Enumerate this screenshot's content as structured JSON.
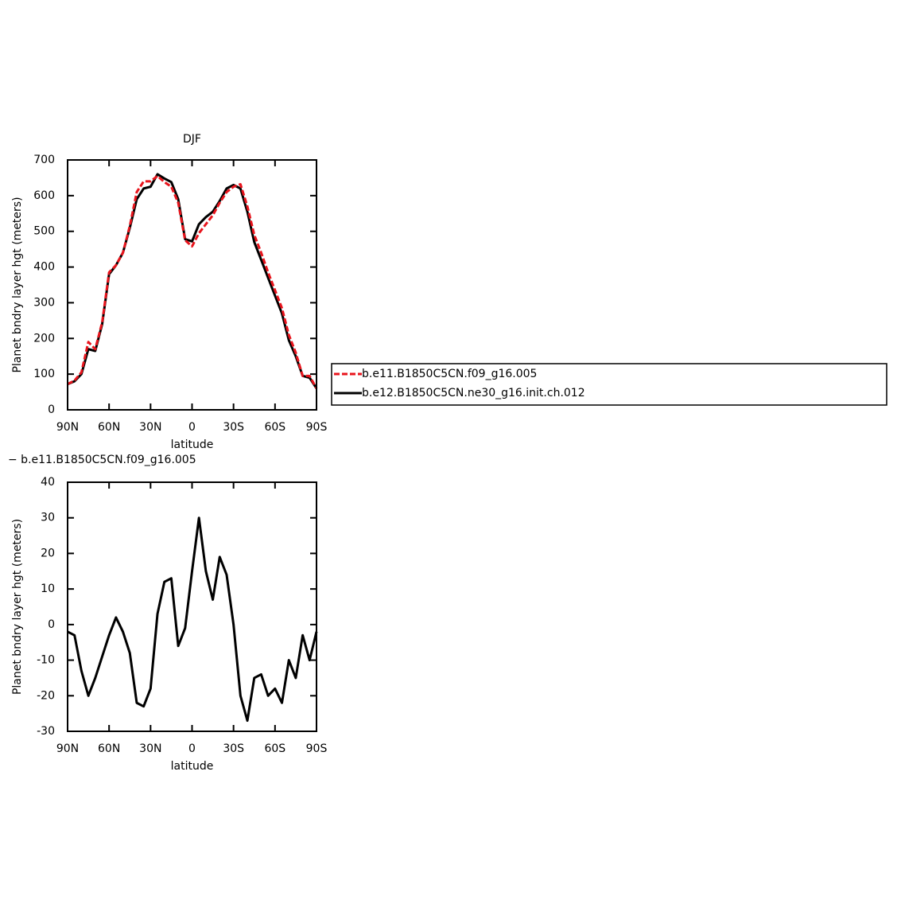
{
  "chart_data": [
    {
      "type": "line",
      "title": "DJF",
      "xlabel": "latitude",
      "ylabel": "Planet bndry layer hgt (meters)",
      "x": [
        90,
        85,
        80,
        75,
        70,
        65,
        60,
        55,
        50,
        45,
        40,
        35,
        30,
        25,
        20,
        15,
        10,
        5,
        0,
        -5,
        -10,
        -15,
        -20,
        -25,
        -30,
        -35,
        -40,
        -45,
        -50,
        -55,
        -60,
        -65,
        -70,
        -75,
        -80,
        -85,
        -90
      ],
      "xlim": [
        90,
        -90
      ],
      "xticks": [
        {
          "value": 90,
          "label": "90N"
        },
        {
          "value": 60,
          "label": "60N"
        },
        {
          "value": 30,
          "label": "30N"
        },
        0,
        {
          "value": -30,
          "label": "30S"
        },
        {
          "value": -60,
          "label": "60S"
        },
        {
          "value": -90,
          "label": "90S"
        }
      ],
      "ylim": [
        0,
        700
      ],
      "yticks": [
        0,
        100,
        200,
        300,
        400,
        500,
        600,
        700
      ],
      "legend": "right",
      "series": [
        {
          "name": "b.e11.B1850C5CN.f09_g16.005",
          "color": "#e8141c",
          "dashed": true,
          "values": [
            72,
            82,
            105,
            190,
            170,
            245,
            385,
            405,
            440,
            515,
            610,
            640,
            640,
            655,
            638,
            625,
            580,
            475,
            458,
            495,
            520,
            545,
            580,
            610,
            625,
            632,
            570,
            490,
            440,
            385,
            335,
            285,
            210,
            160,
            95,
            95,
            60
          ]
        },
        {
          "name": "b.e12.B1850C5CN.ne30_g16.init.ch.012",
          "color": "#000000",
          "dashed": false,
          "values": [
            72,
            80,
            100,
            170,
            165,
            240,
            380,
            405,
            440,
            510,
            590,
            620,
            625,
            660,
            648,
            638,
            590,
            478,
            472,
            520,
            540,
            555,
            585,
            620,
            630,
            620,
            555,
            470,
            420,
            370,
            320,
            270,
            195,
            150,
            95,
            90,
            60
          ]
        }
      ]
    },
    {
      "type": "line",
      "title": "− b.e11.B1850C5CN.f09_g16.005",
      "xlabel": "latitude",
      "ylabel": "Planet bndry layer hgt (meters)",
      "x": [
        90,
        85,
        80,
        75,
        70,
        65,
        60,
        55,
        50,
        45,
        40,
        35,
        30,
        25,
        20,
        15,
        10,
        5,
        0,
        -5,
        -10,
        -15,
        -20,
        -25,
        -30,
        -35,
        -40,
        -45,
        -50,
        -55,
        -60,
        -65,
        -70,
        -75,
        -80,
        -85,
        -90
      ],
      "xlim": [
        90,
        -90
      ],
      "xticks": [
        {
          "value": 90,
          "label": "90N"
        },
        {
          "value": 60,
          "label": "60N"
        },
        {
          "value": 30,
          "label": "30N"
        },
        0,
        {
          "value": -30,
          "label": "30S"
        },
        {
          "value": -60,
          "label": "60S"
        },
        {
          "value": -90,
          "label": "90S"
        }
      ],
      "ylim": [
        -30,
        40
      ],
      "yticks": [
        -30,
        -20,
        -10,
        0,
        10,
        20,
        30,
        40
      ],
      "series": [
        {
          "color": "#000000",
          "dashed": false,
          "values": [
            -2,
            -3,
            -13,
            -20,
            -15,
            -9,
            -3,
            2,
            -2,
            -8,
            -22,
            -23,
            -18,
            3,
            12,
            13,
            -6,
            -1,
            15,
            30,
            15,
            7,
            19,
            14,
            0,
            -20,
            -27,
            -15,
            -14,
            -20,
            -18,
            -22,
            -10,
            -15,
            -3,
            -10,
            -2
          ]
        }
      ]
    }
  ]
}
